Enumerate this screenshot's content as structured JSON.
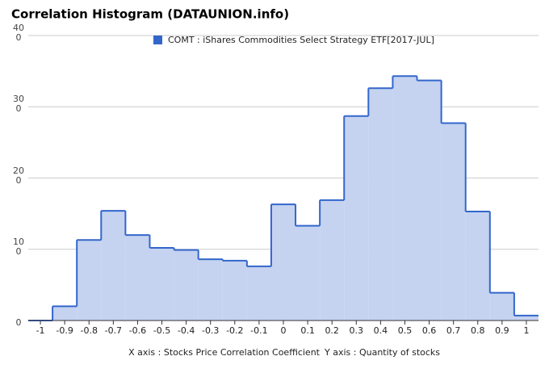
{
  "chart_data": {
    "type": "histogram",
    "title": "Correlation Histogram (DATAUNION.info)",
    "x_label": "X axis : Stocks Price Correlation Coefficient",
    "y_label": "Y axis : Quantity of stocks",
    "series": [
      {
        "name": "COMT : iShares Commodities Select Strategy ETF[2017-JUL]",
        "color": "#3366cc",
        "fill": "#c5d3f0",
        "values": [
          0,
          20,
          113,
          154,
          120,
          102,
          99,
          86,
          84,
          76,
          163,
          133,
          169,
          287,
          326,
          343,
          337,
          277,
          153,
          39,
          7
        ]
      }
    ],
    "bins": [
      -1.05,
      -0.95,
      -0.85,
      -0.75,
      -0.65,
      -0.55,
      -0.45,
      -0.35,
      -0.25,
      -0.15,
      -0.05,
      0.05,
      0.15,
      0.25,
      0.35,
      0.45,
      0.55,
      0.65,
      0.75,
      0.85,
      0.95,
      1.05
    ],
    "xlim": [
      -1.05,
      1.05
    ],
    "xticks": [
      -1,
      -0.9,
      -0.8,
      -0.7,
      -0.6,
      -0.5,
      -0.4,
      -0.3,
      -0.2,
      -0.1,
      0,
      0.1,
      0.2,
      0.3,
      0.4,
      0.5,
      0.6,
      0.7,
      0.8,
      0.9,
      1
    ],
    "ylim": [
      0,
      400
    ],
    "yticks": [
      0,
      100,
      200,
      300,
      400
    ],
    "grid": true,
    "legend": "top"
  }
}
